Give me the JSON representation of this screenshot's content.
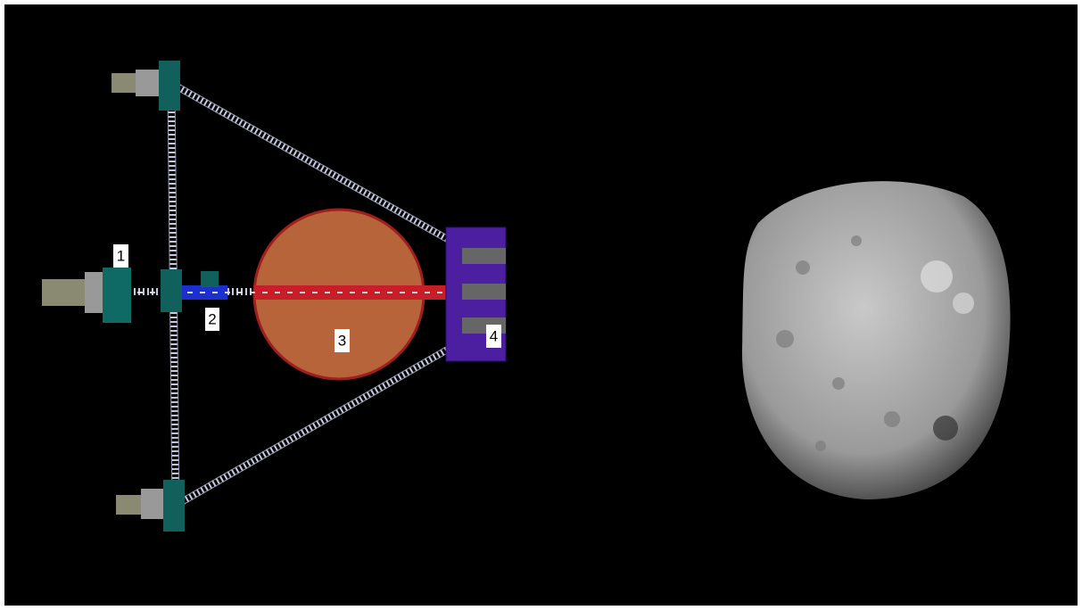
{
  "labels": [
    {
      "text": "1"
    },
    {
      "text": "2"
    },
    {
      "text": "3"
    },
    {
      "text": "4"
    }
  ]
}
